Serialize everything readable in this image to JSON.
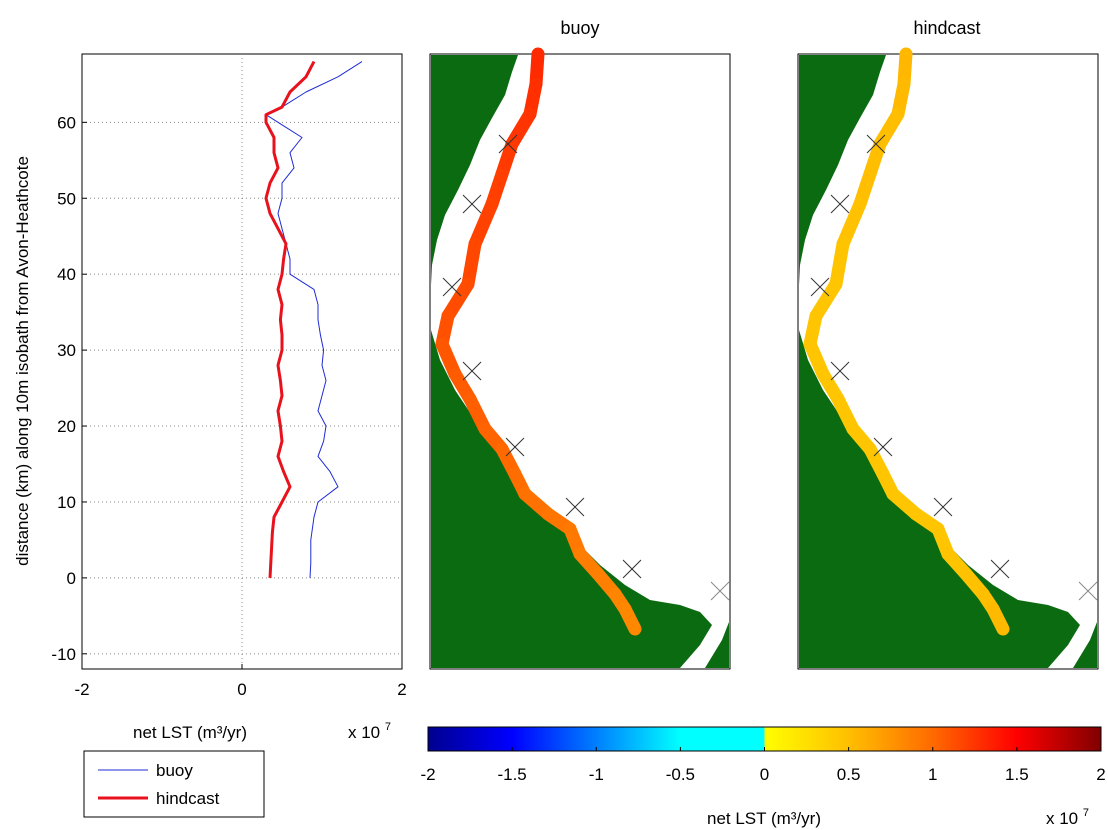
{
  "colors": {
    "buoy_line": "#1f2bd6",
    "hindcast_line": "#e8121d",
    "land": "#0b6b11",
    "gridline": "#888888"
  },
  "chart_data": [
    {
      "type": "line",
      "xlabel": "net LST (m³/yr)",
      "x_multiplier": "x 10",
      "x_multiplier_exp": "7",
      "ylabel": "distance (km) along 10m isobath from Avon-Heathcote",
      "xlim": [
        -2,
        2
      ],
      "ylim": [
        -12,
        69
      ],
      "xticks": [
        "-2",
        "0",
        "2"
      ],
      "yticks": [
        "-10",
        "0",
        "10",
        "20",
        "30",
        "40",
        "50",
        "60"
      ],
      "legend_position": "below-left",
      "grid": "dotted",
      "series": [
        {
          "name": "buoy",
          "y": [
            0,
            2,
            5,
            8,
            10,
            12,
            14,
            16,
            18,
            20,
            22,
            24,
            26,
            28,
            30,
            32,
            34,
            36,
            38,
            40,
            42,
            44,
            46,
            48,
            50,
            52,
            54,
            56,
            58,
            60,
            61,
            62,
            64,
            66,
            68
          ],
          "x": [
            0.85,
            0.86,
            0.86,
            0.9,
            0.95,
            1.2,
            1.1,
            0.95,
            1.02,
            1.05,
            0.95,
            1.0,
            1.05,
            1.0,
            1.02,
            0.98,
            0.95,
            0.95,
            0.9,
            0.6,
            0.6,
            0.55,
            0.5,
            0.45,
            0.5,
            0.5,
            0.65,
            0.6,
            0.75,
            0.45,
            0.3,
            0.5,
            0.8,
            1.2,
            1.5
          ]
        },
        {
          "name": "hindcast",
          "y": [
            0,
            2,
            4,
            6,
            8,
            10,
            12,
            14,
            16,
            18,
            20,
            22,
            24,
            26,
            28,
            30,
            32,
            34,
            36,
            38,
            40,
            42,
            44,
            46,
            48,
            50,
            52,
            54,
            56,
            58,
            60,
            61,
            62,
            64,
            66,
            68
          ],
          "x": [
            0.35,
            0.36,
            0.37,
            0.38,
            0.4,
            0.5,
            0.6,
            0.52,
            0.45,
            0.5,
            0.48,
            0.45,
            0.5,
            0.48,
            0.45,
            0.5,
            0.5,
            0.48,
            0.5,
            0.45,
            0.5,
            0.52,
            0.55,
            0.45,
            0.35,
            0.3,
            0.35,
            0.45,
            0.4,
            0.4,
            0.3,
            0.3,
            0.5,
            0.6,
            0.8,
            0.9
          ]
        }
      ]
    },
    {
      "type": "heatmap",
      "title": "buoy",
      "description_of_track": "net LST along 10m isobath shown as colored track over map",
      "track_values_1e7": [
        1.3,
        1.25,
        1.2,
        1.15,
        1.1,
        1.05,
        1.0,
        0.95,
        0.9,
        0.85,
        0.8
      ]
    },
    {
      "type": "heatmap",
      "title": "hindcast",
      "track_values_1e7": [
        0.55,
        0.5,
        0.5,
        0.45,
        0.45,
        0.45,
        0.45,
        0.45,
        0.45,
        0.5,
        0.55
      ]
    },
    {
      "type": "heatmap",
      "colorbar": true,
      "xlabel": "net LST (m³/yr)",
      "x_multiplier": "x 10",
      "x_multiplier_exp": "7",
      "ticks": [
        "-2",
        "-1.5",
        "-1",
        "-0.5",
        "0",
        "0.5",
        "1",
        "1.5",
        "2"
      ],
      "range": [
        -2,
        2
      ]
    }
  ],
  "legend": {
    "items": [
      {
        "label": "buoy"
      },
      {
        "label": "hindcast"
      }
    ]
  }
}
